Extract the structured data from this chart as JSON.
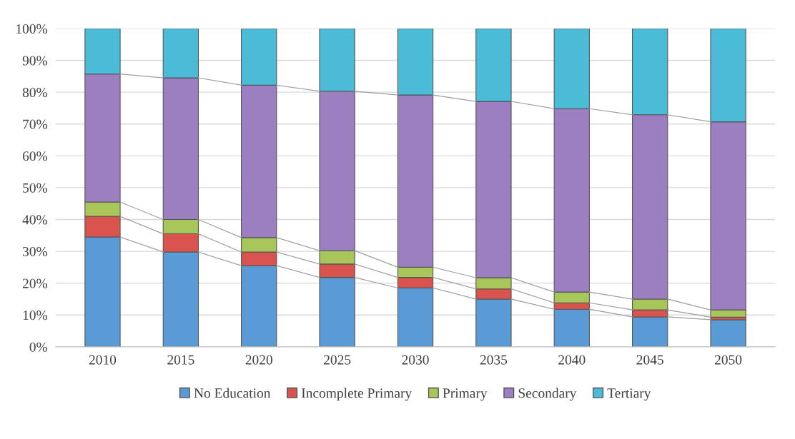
{
  "chart_data": {
    "type": "bar",
    "stacked": true,
    "categories": [
      "2010",
      "2015",
      "2020",
      "2025",
      "2030",
      "2035",
      "2040",
      "2045",
      "2050"
    ],
    "series": [
      {
        "name": "No Education",
        "color": "#5b9bd5",
        "values": [
          34.5,
          29.8,
          25.5,
          21.8,
          18.5,
          15,
          11.8,
          9.4,
          8.5
        ]
      },
      {
        "name": "Incomplete Primary",
        "color": "#d9534f",
        "values": [
          6.5,
          5.7,
          4.3,
          4.2,
          3.3,
          3.2,
          2.0,
          2.2,
          0.8
        ]
      },
      {
        "name": "Primary",
        "color": "#a9c65a",
        "values": [
          4.5,
          4.5,
          4.5,
          4.2,
          3.2,
          3.5,
          3.4,
          3.4,
          2.3
        ]
      },
      {
        "name": "Secondary",
        "color": "#9b7fc0",
        "values": [
          40.2,
          44.5,
          47.9,
          50.1,
          54.1,
          55.4,
          57.6,
          57.9,
          59.1
        ]
      },
      {
        "name": "Tertiary",
        "color": "#4bbcd8",
        "values": [
          14.3,
          15.5,
          17.8,
          19.7,
          20.9,
          22.9,
          25.2,
          27.1,
          29.3
        ]
      }
    ],
    "ylim": [
      0,
      100
    ],
    "yticks": [
      {
        "value": 0,
        "label": "0%"
      },
      {
        "value": 10,
        "label": "10%"
      },
      {
        "value": 20,
        "label": "20%"
      },
      {
        "value": 30,
        "label": "30%"
      },
      {
        "value": 40,
        "label": "40%"
      },
      {
        "value": 50,
        "label": "50%"
      },
      {
        "value": 60,
        "label": "60%"
      },
      {
        "value": 70,
        "label": "70%"
      },
      {
        "value": 80,
        "label": "80%"
      },
      {
        "value": 90,
        "label": "90%"
      },
      {
        "value": 100,
        "label": "100%"
      }
    ],
    "grid": "y",
    "legend": "bottom"
  }
}
